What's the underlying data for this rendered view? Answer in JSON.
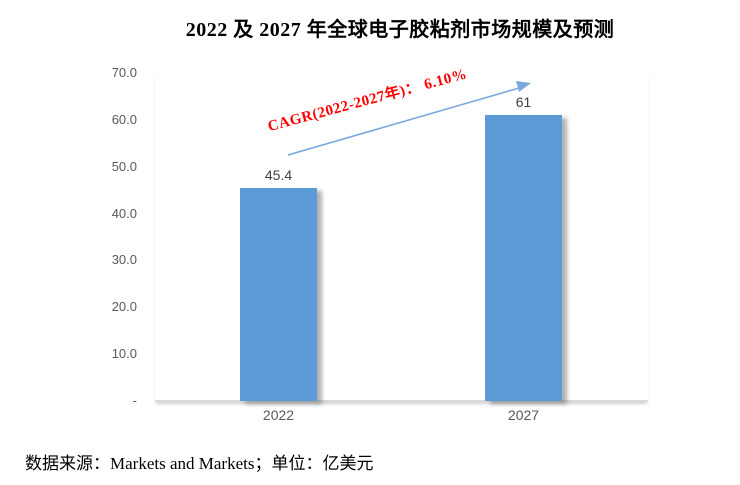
{
  "title": "2022 及 2027 年全球电子胶粘剂市场规模及预测",
  "chart_data": {
    "type": "bar",
    "title": "2022 及 2027 年全球电子胶粘剂市场规模及预测",
    "categories": [
      "2022",
      "2027"
    ],
    "values": [
      45.4,
      61
    ],
    "value_labels": [
      "45.4",
      "61"
    ],
    "xlabel": "",
    "ylabel": "",
    "ylim": [
      0,
      70
    ],
    "ytick_labels": [
      "70.0",
      "60.0",
      "50.0",
      "40.0",
      "30.0",
      "20.0",
      "10.0",
      "-"
    ],
    "grid": false,
    "legend": null,
    "unit": "亿美元",
    "annotation": {
      "text": "CAGR(2022-2027年)： 6.10%",
      "color": "#FF0000"
    },
    "colors": {
      "bar": "#5B9BD5",
      "arrow": "#78A8DE",
      "tick_text": "#595959",
      "value_text": "#404040",
      "axis_line": "#D9D9D9"
    }
  },
  "footer": {
    "source": "数据来源：Markets and Markets；单位：亿美元"
  }
}
